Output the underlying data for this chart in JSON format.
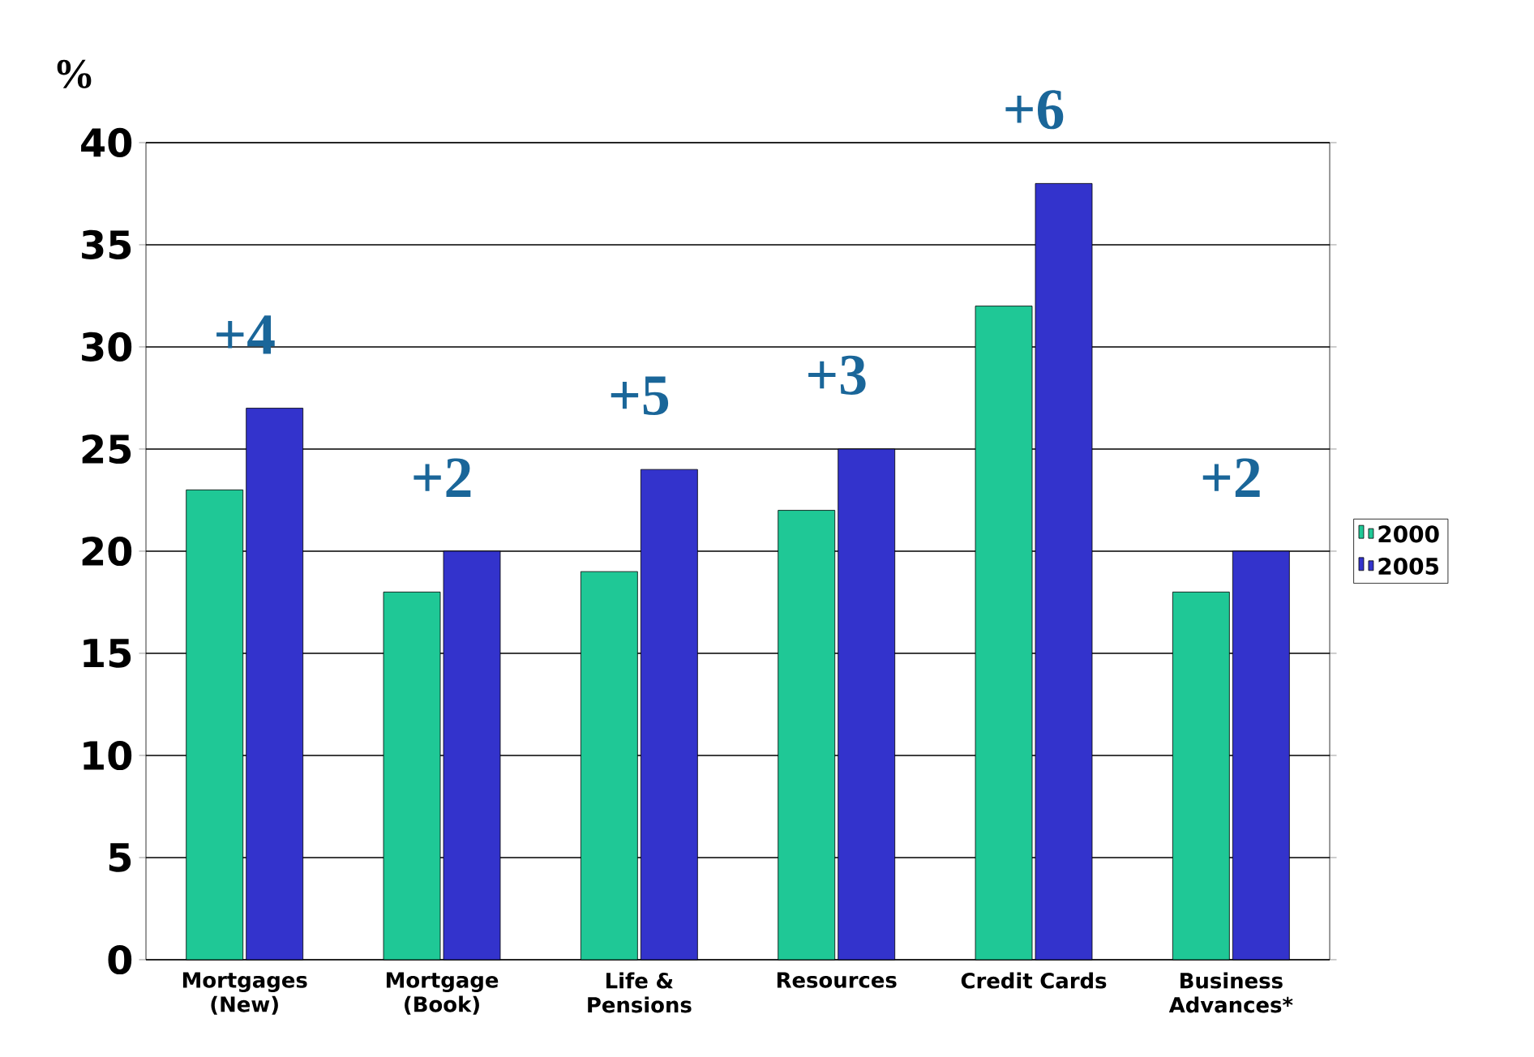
{
  "chart_data": {
    "type": "bar",
    "ylabel": "%",
    "categories": [
      "Mortgages (New)",
      "Mortgage (Book)",
      "Life & Pensions",
      "Resources",
      "Credit Cards",
      "Business Advances*"
    ],
    "series": [
      {
        "name": "2000",
        "color": "#1fc896",
        "values": [
          23,
          18,
          19,
          22,
          32,
          18
        ]
      },
      {
        "name": "2005",
        "color": "#3333cc",
        "values": [
          27,
          20,
          24,
          25,
          38,
          20
        ]
      }
    ],
    "ylim": [
      0,
      40
    ],
    "yticks": [
      0,
      5,
      10,
      15,
      20,
      25,
      30,
      35,
      40
    ],
    "grid": "y",
    "legend": "right",
    "annotations": [
      {
        "text": "+4",
        "x": "Mortgages (New)",
        "y": 27
      },
      {
        "text": "+2",
        "x": "Mortgage (Book)",
        "y": 20
      },
      {
        "text": "+5",
        "x": "Life & Pensions",
        "y": 24
      },
      {
        "text": "+3",
        "x": "Resources",
        "y": 25
      },
      {
        "text": "+6",
        "x": "Credit Cards",
        "y": 38
      },
      {
        "text": "+2",
        "x": "Business Advances*",
        "y": 20
      }
    ]
  }
}
